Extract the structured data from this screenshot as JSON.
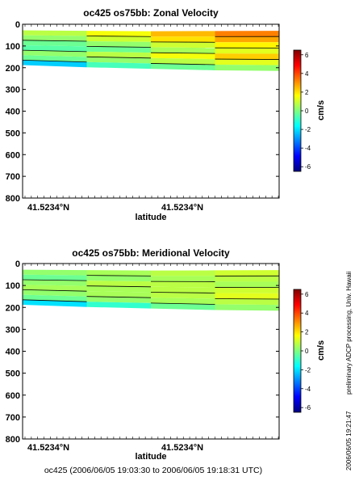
{
  "chart_data": [
    {
      "type": "heatmap",
      "title": "oc425 os75bb: Zonal Velocity",
      "xlabel": "latitude",
      "x_ticks": [
        "41.5234°N",
        "41.5234°N"
      ],
      "y_ticks": [
        0,
        100,
        200,
        300,
        400,
        500,
        600,
        700,
        800
      ],
      "ylim": [
        800,
        0
      ],
      "y_reversed": true,
      "data_depth_range": [
        28,
        215
      ],
      "colorbar": {
        "label": "cm/s",
        "range": [
          -6.5,
          6.5
        ],
        "ticks": [
          6,
          4,
          2,
          0,
          -2,
          -4,
          -6
        ]
      },
      "sections": [
        {
          "x": 0.0,
          "top": 28,
          "bottom": 188
        },
        {
          "x": 0.25,
          "top": 30,
          "bottom": 198
        },
        {
          "x": 0.5,
          "top": 32,
          "bottom": 205
        },
        {
          "x": 0.75,
          "top": 31,
          "bottom": 212
        },
        {
          "x": 1.0,
          "top": 30,
          "bottom": 215
        }
      ],
      "values": [
        [
          0.5,
          1.0,
          2.0,
          3.0,
          3.5
        ],
        [
          0.0,
          0.5,
          1.5,
          2.5,
          3.0
        ],
        [
          -0.5,
          0.0,
          0.5,
          1.5,
          2.0
        ],
        [
          -0.5,
          -0.5,
          0.0,
          1.0,
          1.5
        ],
        [
          0.0,
          0.5,
          1.0,
          2.0,
          2.5
        ],
        [
          -0.5,
          0.0,
          0.5,
          1.0,
          1.5
        ],
        [
          -3.5,
          -1.0,
          -0.5,
          0.0,
          0.5
        ]
      ]
    },
    {
      "type": "heatmap",
      "title": "oc425 os75bb: Meridional Velocity",
      "xlabel": "latitude",
      "x_ticks": [
        "41.5234°N",
        "41.5234°N"
      ],
      "y_ticks": [
        0,
        100,
        200,
        300,
        400,
        500,
        600,
        700,
        800
      ],
      "ylim": [
        800,
        0
      ],
      "y_reversed": true,
      "data_depth_range": [
        28,
        215
      ],
      "colorbar": {
        "label": "cm/s",
        "range": [
          -6.5,
          6.5
        ],
        "ticks": [
          6,
          4,
          2,
          0,
          -2,
          -4,
          -6
        ]
      },
      "sections": [
        {
          "x": 0.0,
          "top": 28,
          "bottom": 188
        },
        {
          "x": 0.25,
          "top": 30,
          "bottom": 198
        },
        {
          "x": 0.5,
          "top": 32,
          "bottom": 205
        },
        {
          "x": 0.75,
          "top": 31,
          "bottom": 212
        },
        {
          "x": 1.0,
          "top": 30,
          "bottom": 215
        }
      ],
      "values": [
        [
          0.0,
          0.5,
          0.5,
          1.0,
          1.0
        ],
        [
          -0.5,
          0.0,
          0.5,
          0.5,
          1.0
        ],
        [
          0.0,
          0.5,
          1.0,
          0.5,
          0.5
        ],
        [
          0.5,
          0.5,
          0.5,
          1.0,
          1.0
        ],
        [
          0.0,
          0.5,
          0.5,
          1.0,
          1.5
        ],
        [
          -0.5,
          0.0,
          0.5,
          0.5,
          1.0
        ],
        [
          -2.5,
          -1.5,
          -0.5,
          0.0,
          0.5
        ]
      ]
    }
  ],
  "footer": "oc425 (2006/06/05 19:03:30 to 2006/06/05 19:18:31 UTC)",
  "side_note": "preliminary ADCP processing,   Univ. Hawaii",
  "timestamp": "2006/06/05 19:21:47"
}
